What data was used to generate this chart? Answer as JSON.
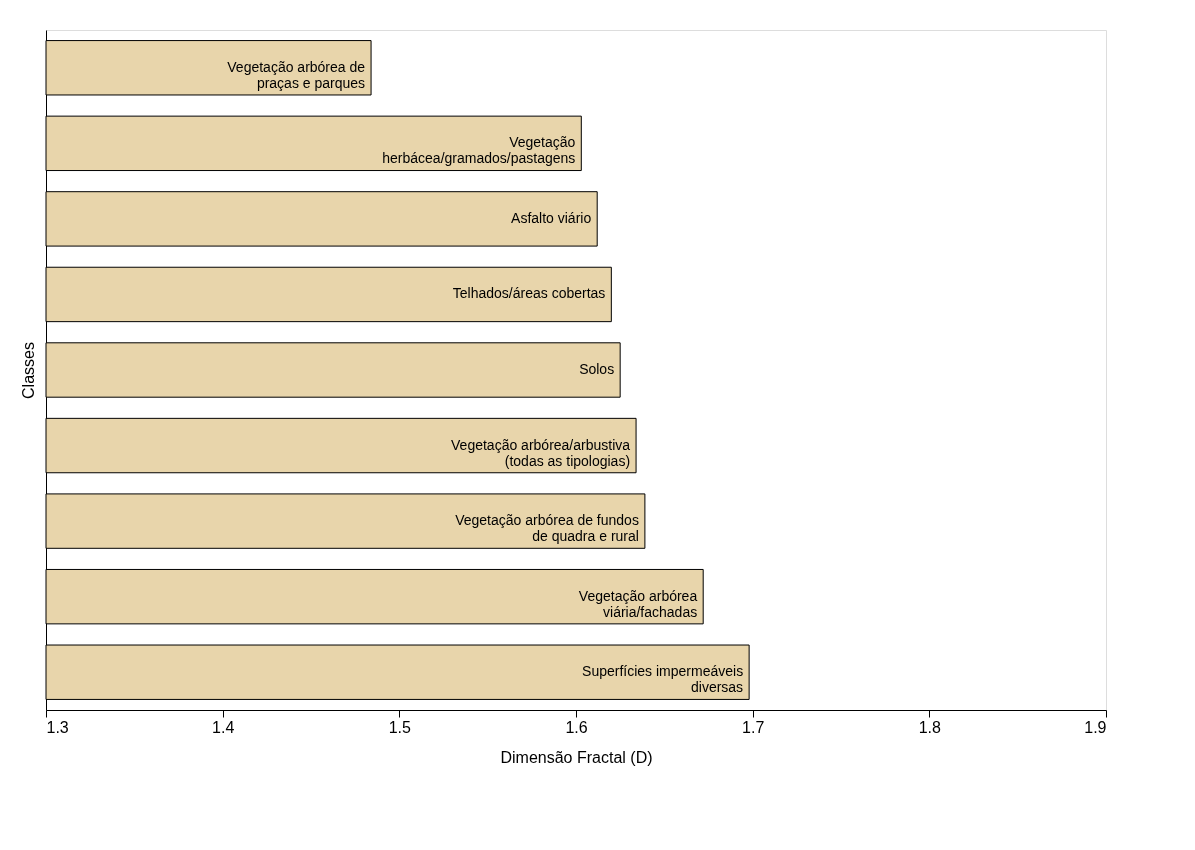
{
  "chart_data": {
    "type": "bar",
    "orientation": "horizontal",
    "xlabel": "Dimensão Fractal (D)",
    "ylabel": "Classes",
    "categories": [
      "Vegetação arbórea de\npraças e parques",
      "Vegetação\nherbácea/gramados/pastagens",
      "Asfalto viário",
      "Telhados/áreas cobertas",
      "Solos",
      "Vegetação arbórea/arbustiva\n(todas as tipologias)",
      "Vegetação arbórea de fundos\nde quadra e rural",
      "Vegetação arbórea\nviária/fachadas",
      "Superfícies impermeáveis\ndiversas"
    ],
    "values": [
      1.484,
      1.603,
      1.612,
      1.62,
      1.625,
      1.634,
      1.639,
      1.672,
      1.698
    ],
    "color": "#e8d5ab",
    "xlim": [
      1.3,
      1.9
    ],
    "xticks": [
      1.3,
      1.4,
      1.5,
      1.6,
      1.7,
      1.8,
      1.9
    ],
    "tick_labels": "x",
    "grid": false
  }
}
